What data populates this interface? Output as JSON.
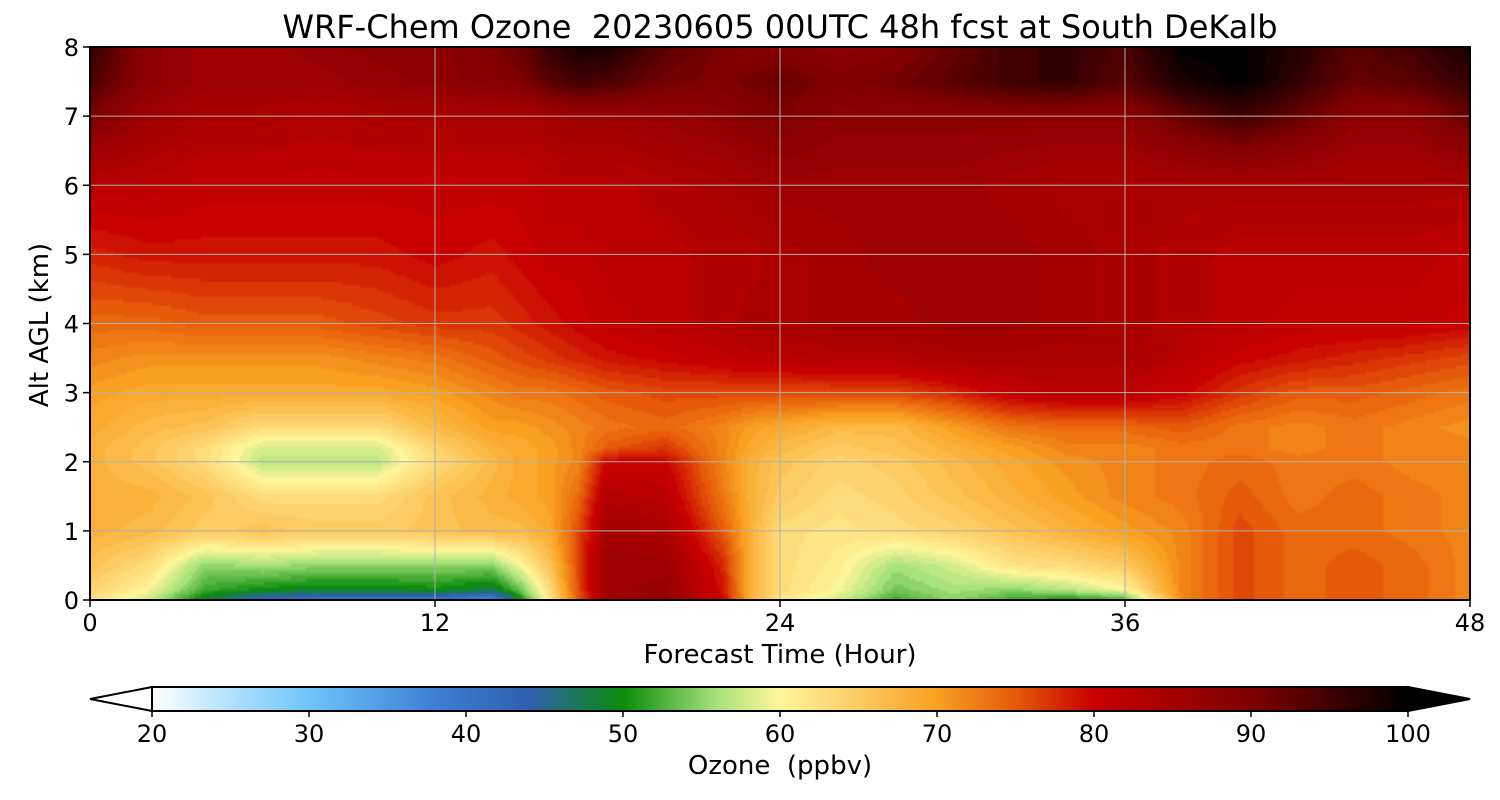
{
  "chart_data": {
    "type": "heatmap",
    "title": "WRF-Chem Ozone  20230605 00UTC 48h fcst at South DeKalb",
    "xlabel": "Forecast Time (Hour)",
    "ylabel": "Alt AGL (km)",
    "xlim": [
      0,
      48
    ],
    "ylim": [
      0,
      8
    ],
    "xticks": [
      0,
      12,
      24,
      36,
      48
    ],
    "yticks": [
      0,
      1,
      2,
      3,
      4,
      5,
      6,
      7,
      8
    ],
    "grid": true,
    "colorbar": {
      "label": "Ozone  (ppbv)",
      "min": 20,
      "max": 100,
      "ticks": [
        20,
        30,
        40,
        50,
        60,
        70,
        80,
        90,
        100
      ],
      "extend": "both",
      "orientation": "horizontal",
      "colors": [
        "#ffffff",
        "#bfe6ff",
        "#6ec4fa",
        "#3d7fd4",
        "#2f5fae",
        "#0b8c0b",
        "#a8e27a",
        "#fdf59a",
        "#fdd36e",
        "#f9a020",
        "#e65a0a",
        "#c80000",
        "#800000",
        "#000000"
      ],
      "color_positions": [
        20,
        24,
        30,
        38,
        44,
        50,
        56,
        60,
        64,
        70,
        75,
        80,
        90,
        100
      ]
    },
    "x": [
      0,
      2,
      4,
      6,
      8,
      10,
      12,
      14,
      15,
      16,
      17,
      18,
      20,
      22,
      23,
      24,
      26,
      28,
      30,
      32,
      34,
      36,
      38,
      40,
      42,
      44,
      46,
      48
    ],
    "y": [
      0,
      0.15,
      0.5,
      1,
      1.5,
      2,
      2.2,
      2.5,
      3,
      3.5,
      4,
      5,
      6,
      7,
      7.5,
      8
    ],
    "z": [
      [
        62,
        58,
        48,
        42,
        40,
        40,
        40,
        36,
        50,
        62,
        75,
        85,
        87,
        80,
        68,
        62,
        58,
        52,
        55,
        52,
        50,
        52,
        72,
        76,
        74,
        75,
        74,
        72
      ],
      [
        64,
        60,
        52,
        50,
        49,
        49,
        50,
        48,
        54,
        63,
        76,
        86,
        87,
        79,
        68,
        63,
        60,
        54,
        56,
        55,
        57,
        60,
        72,
        76,
        74,
        75,
        74,
        72
      ],
      [
        66,
        63,
        55,
        56,
        55,
        55,
        55,
        55,
        60,
        66,
        76,
        86,
        86,
        78,
        68,
        63,
        61,
        56,
        58,
        62,
        63,
        65,
        72,
        76,
        74,
        75,
        74,
        72
      ],
      [
        68,
        67,
        65,
        66,
        65,
        65,
        66,
        67,
        67,
        69,
        76,
        85,
        84,
        75,
        68,
        63,
        62,
        63,
        64,
        66,
        68,
        70,
        72,
        76,
        74,
        74,
        73,
        72
      ],
      [
        68,
        68,
        66,
        63,
        63,
        63,
        66,
        68,
        69,
        70,
        74,
        83,
        82,
        73,
        68,
        65,
        63,
        64,
        66,
        68,
        70,
        72,
        73,
        75,
        73,
        74,
        73,
        72
      ],
      [
        68,
        66,
        63,
        57,
        57,
        57,
        63,
        67,
        69,
        70,
        72,
        80,
        80,
        72,
        68,
        66,
        64,
        65,
        67,
        69,
        71,
        72,
        73,
        74,
        73,
        73,
        72,
        72
      ],
      [
        68,
        66,
        63,
        58,
        58,
        58,
        64,
        68,
        69,
        70,
        72,
        75,
        77,
        72,
        69,
        67,
        65,
        66,
        68,
        70,
        72,
        72,
        73,
        73,
        72,
        73,
        72,
        72
      ],
      [
        69,
        67,
        66,
        63,
        63,
        63,
        67,
        70,
        70,
        71,
        72,
        73,
        74,
        72,
        70,
        69,
        67,
        67,
        70,
        73,
        74,
        74,
        75,
        73,
        72,
        73,
        72,
        71
      ],
      [
        70,
        69,
        69,
        69,
        69,
        69,
        70,
        72,
        73,
        73,
        74,
        75,
        76,
        76,
        76,
        76,
        76,
        76,
        78,
        81,
        82,
        82,
        80,
        77,
        75,
        75,
        74,
        73
      ],
      [
        72,
        71,
        71,
        71,
        71,
        72,
        73,
        75,
        76,
        77,
        78,
        79,
        80,
        81,
        82,
        82,
        83,
        83,
        84,
        84,
        84,
        84,
        82,
        80,
        79,
        78,
        77,
        76
      ],
      [
        74,
        74,
        75,
        75,
        75,
        76,
        77,
        77,
        78,
        79,
        80,
        81,
        82,
        83,
        84,
        84,
        85,
        85,
        86,
        86,
        85,
        84,
        83,
        82,
        81,
        81,
        81,
        80
      ],
      [
        78,
        79,
        79,
        79,
        79,
        79,
        80,
        79,
        80,
        81,
        81,
        82,
        82,
        83,
        83,
        84,
        85,
        86,
        86,
        86,
        85,
        84,
        83,
        82,
        82,
        82,
        82,
        81
      ],
      [
        82,
        82,
        81,
        81,
        81,
        81,
        81,
        81,
        81,
        82,
        82,
        82,
        83,
        84,
        85,
        86,
        86,
        86,
        86,
        85,
        84,
        84,
        84,
        84,
        84,
        84,
        84,
        84
      ],
      [
        90,
        86,
        84,
        84,
        83,
        84,
        84,
        84,
        84,
        85,
        86,
        86,
        87,
        88,
        89,
        90,
        88,
        88,
        88,
        88,
        88,
        88,
        92,
        95,
        92,
        88,
        88,
        92
      ],
      [
        94,
        88,
        86,
        86,
        86,
        87,
        88,
        89,
        90,
        93,
        95,
        94,
        91,
        90,
        91,
        92,
        90,
        91,
        93,
        95,
        96,
        93,
        98,
        100,
        96,
        92,
        93,
        96
      ],
      [
        96,
        88,
        86,
        86,
        87,
        88,
        88,
        90,
        92,
        96,
        98,
        98,
        93,
        90,
        89,
        89,
        88,
        89,
        92,
        95,
        96,
        94,
        100,
        100,
        97,
        93,
        95,
        98
      ]
    ]
  }
}
